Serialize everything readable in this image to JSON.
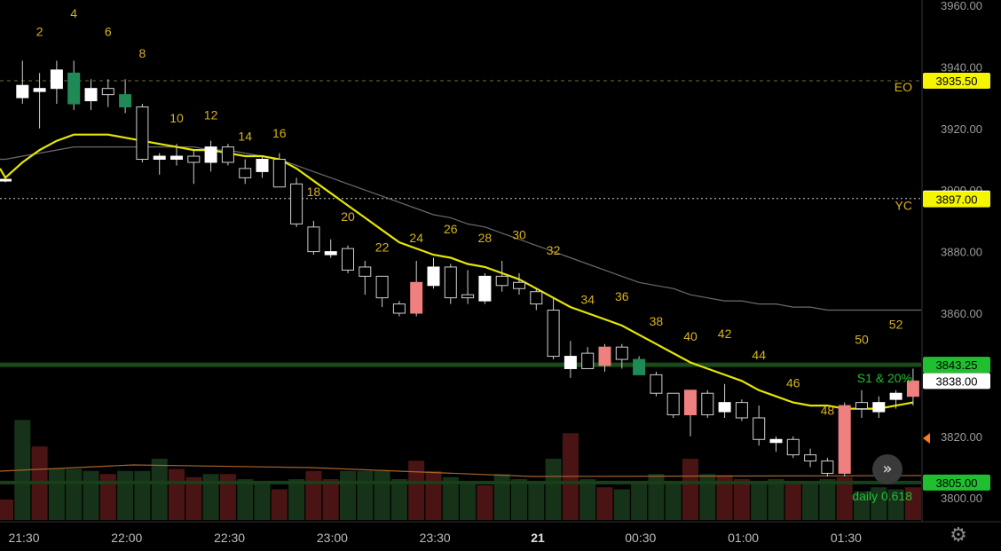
{
  "colors": {
    "background": "#000000",
    "bull_candle": "#ffffff",
    "bear_candle": "#000000",
    "bull_signal": "#1f8a55",
    "bear_signal": "#f07f7f",
    "ema": "#e6e600",
    "sma": "#6b6b6b",
    "bar_number": "#d8b21a",
    "green_tag": "#1fbf2f",
    "yellow_tag": "#f5f500",
    "white_tag": "#ffffff"
  },
  "icons": {
    "settings": "gear-icon",
    "scroll": "fast-forward-icon",
    "scale": "price-scale-arrow-icon"
  },
  "chart_data": {
    "type": "candlestick",
    "ylim": [
      3797,
      3960
    ],
    "y_ticks": [
      "3960.00",
      "3940.00",
      "3920.00",
      "3900.00",
      "3880.00",
      "3860.00",
      "3838.00",
      "3820.00",
      "3800.00"
    ],
    "x_ticks": [
      {
        "label": "21:30",
        "bar": 0
      },
      {
        "label": "22:00",
        "bar": 6
      },
      {
        "label": "22:30",
        "bar": 12
      },
      {
        "label": "23:00",
        "bar": 18
      },
      {
        "label": "23:30",
        "bar": 24
      },
      {
        "label": "21",
        "bar": 30,
        "bold": true
      },
      {
        "label": "00:30",
        "bar": 36
      },
      {
        "label": "01:00",
        "bar": 42
      },
      {
        "label": "01:30",
        "bar": 48
      }
    ],
    "candles": [
      {
        "o": 3903.0,
        "h": 3903.5,
        "l": 3902.5,
        "c": 3903.5,
        "color": "white"
      },
      {
        "o": 3930,
        "h": 3942,
        "l": 3928,
        "c": 3934,
        "color": "white"
      },
      {
        "o": 3932,
        "h": 3938,
        "l": 3920,
        "c": 3933,
        "color": "white"
      },
      {
        "o": 3933,
        "h": 3942,
        "l": 3928,
        "c": 3939,
        "color": "white"
      },
      {
        "o": 3938,
        "h": 3942,
        "l": 3926,
        "c": 3928,
        "color": "green"
      },
      {
        "o": 3933,
        "h": 3936,
        "l": 3926,
        "c": 3929,
        "color": "white"
      },
      {
        "o": 3933,
        "h": 3936,
        "l": 3927,
        "c": 3931,
        "color": "black"
      },
      {
        "o": 3931,
        "h": 3936,
        "l": 3925,
        "c": 3927,
        "color": "green"
      },
      {
        "o": 3927,
        "h": 3928,
        "l": 3909,
        "c": 3910,
        "color": "black"
      },
      {
        "o": 3910,
        "h": 3912,
        "l": 3905,
        "c": 3911,
        "color": "white"
      },
      {
        "o": 3911,
        "h": 3915,
        "l": 3908,
        "c": 3910,
        "color": "white"
      },
      {
        "o": 3909,
        "h": 3913,
        "l": 3902,
        "c": 3911,
        "color": "black"
      },
      {
        "o": 3909,
        "h": 3916,
        "l": 3906,
        "c": 3914,
        "color": "white"
      },
      {
        "o": 3914,
        "h": 3915,
        "l": 3908,
        "c": 3909,
        "color": "black"
      },
      {
        "o": 3907,
        "h": 3910,
        "l": 3902,
        "c": 3904,
        "color": "black"
      },
      {
        "o": 3906,
        "h": 3911,
        "l": 3904,
        "c": 3910,
        "color": "white"
      },
      {
        "o": 3910,
        "h": 3912,
        "l": 3902,
        "c": 3901,
        "color": "black"
      },
      {
        "o": 3902,
        "h": 3904,
        "l": 3888,
        "c": 3889,
        "color": "black"
      },
      {
        "o": 3888,
        "h": 3890,
        "l": 3879,
        "c": 3880,
        "color": "black"
      },
      {
        "o": 3879,
        "h": 3884,
        "l": 3878,
        "c": 3880,
        "color": "white"
      },
      {
        "o": 3881,
        "h": 3882,
        "l": 3873,
        "c": 3874,
        "color": "black"
      },
      {
        "o": 3875,
        "h": 3877,
        "l": 3866,
        "c": 3872,
        "color": "black"
      },
      {
        "o": 3872,
        "h": 3872,
        "l": 3862,
        "c": 3865,
        "color": "black"
      },
      {
        "o": 3863,
        "h": 3864,
        "l": 3859,
        "c": 3860,
        "color": "black"
      },
      {
        "o": 3860,
        "h": 3877,
        "l": 3859,
        "c": 3870,
        "color": "red"
      },
      {
        "o": 3869,
        "h": 3878,
        "l": 3868,
        "c": 3875,
        "color": "white"
      },
      {
        "o": 3875,
        "h": 3876,
        "l": 3863,
        "c": 3865,
        "color": "black"
      },
      {
        "o": 3865,
        "h": 3874,
        "l": 3863,
        "c": 3866,
        "color": "black"
      },
      {
        "o": 3864,
        "h": 3873,
        "l": 3863,
        "c": 3872,
        "color": "white"
      },
      {
        "o": 3872,
        "h": 3877,
        "l": 3867,
        "c": 3869,
        "color": "black"
      },
      {
        "o": 3870,
        "h": 3873,
        "l": 3866,
        "c": 3868,
        "color": "black"
      },
      {
        "o": 3867,
        "h": 3868,
        "l": 3861,
        "c": 3863,
        "color": "black"
      },
      {
        "o": 3861,
        "h": 3865,
        "l": 3845,
        "c": 3846,
        "color": "black"
      },
      {
        "o": 3846,
        "h": 3851,
        "l": 3839,
        "c": 3842,
        "color": "white"
      },
      {
        "o": 3847,
        "h": 3849,
        "l": 3842,
        "c": 3842,
        "color": "black"
      },
      {
        "o": 3843,
        "h": 3850,
        "l": 3841,
        "c": 3849,
        "color": "red"
      },
      {
        "o": 3845,
        "h": 3850,
        "l": 3842,
        "c": 3849,
        "color": "black"
      },
      {
        "o": 3845,
        "h": 3846,
        "l": 3840,
        "c": 3840,
        "color": "green"
      },
      {
        "o": 3840,
        "h": 3841,
        "l": 3833,
        "c": 3834,
        "color": "black"
      },
      {
        "o": 3834,
        "h": 3834,
        "l": 3826,
        "c": 3827,
        "color": "black"
      },
      {
        "o": 3827,
        "h": 3835,
        "l": 3820,
        "c": 3835,
        "color": "red"
      },
      {
        "o": 3827,
        "h": 3835,
        "l": 3826,
        "c": 3834,
        "color": "black"
      },
      {
        "o": 3828,
        "h": 3837,
        "l": 3826,
        "c": 3831,
        "color": "white"
      },
      {
        "o": 3831,
        "h": 3832,
        "l": 3825,
        "c": 3826,
        "color": "black"
      },
      {
        "o": 3826,
        "h": 3830,
        "l": 3817,
        "c": 3819,
        "color": "black"
      },
      {
        "o": 3818,
        "h": 3820,
        "l": 3815,
        "c": 3819,
        "color": "white"
      },
      {
        "o": 3819,
        "h": 3820,
        "l": 3813,
        "c": 3814,
        "color": "black"
      },
      {
        "o": 3814,
        "h": 3816,
        "l": 3810,
        "c": 3812,
        "color": "black"
      },
      {
        "o": 3812,
        "h": 3813,
        "l": 3807,
        "c": 3808,
        "color": "black"
      },
      {
        "o": 3808,
        "h": 3831,
        "l": 3807,
        "c": 3830,
        "color": "red"
      },
      {
        "o": 3829,
        "h": 3835,
        "l": 3826,
        "c": 3831,
        "color": "black"
      },
      {
        "o": 3828,
        "h": 3833,
        "l": 3826,
        "c": 3831,
        "color": "white"
      },
      {
        "o": 3832,
        "h": 3835,
        "l": 3829,
        "c": 3834,
        "color": "white"
      },
      {
        "o": 3833,
        "h": 3842,
        "l": 3830,
        "c": 3838,
        "color": "red"
      }
    ],
    "bar_numbers": [
      {
        "label": "2",
        "bar": 2,
        "price": 3950
      },
      {
        "label": "4",
        "bar": 4,
        "price": 3956
      },
      {
        "label": "6",
        "bar": 6,
        "price": 3950
      },
      {
        "label": "8",
        "bar": 8,
        "price": 3943
      },
      {
        "label": "10",
        "bar": 10,
        "price": 3922
      },
      {
        "label": "12",
        "bar": 12,
        "price": 3923
      },
      {
        "label": "14",
        "bar": 14,
        "price": 3916
      },
      {
        "label": "16",
        "bar": 16,
        "price": 3917
      },
      {
        "label": "18",
        "bar": 18,
        "price": 3898
      },
      {
        "label": "20",
        "bar": 20,
        "price": 3890
      },
      {
        "label": "22",
        "bar": 22,
        "price": 3880
      },
      {
        "label": "24",
        "bar": 24,
        "price": 3883
      },
      {
        "label": "26",
        "bar": 26,
        "price": 3886
      },
      {
        "label": "28",
        "bar": 28,
        "price": 3883
      },
      {
        "label": "30",
        "bar": 30,
        "price": 3884
      },
      {
        "label": "32",
        "bar": 32,
        "price": 3879
      },
      {
        "label": "34",
        "bar": 34,
        "price": 3863
      },
      {
        "label": "36",
        "bar": 36,
        "price": 3864
      },
      {
        "label": "38",
        "bar": 38,
        "price": 3856
      },
      {
        "label": "40",
        "bar": 40,
        "price": 3851
      },
      {
        "label": "42",
        "bar": 42,
        "price": 3852
      },
      {
        "label": "44",
        "bar": 44,
        "price": 3845
      },
      {
        "label": "46",
        "bar": 46,
        "price": 3836
      },
      {
        "label": "48",
        "bar": 48,
        "price": 3827
      },
      {
        "label": "50",
        "bar": 50,
        "price": 3850
      },
      {
        "label": "52",
        "bar": 52,
        "price": 3855
      }
    ],
    "ema": [
      3904,
      3909,
      3913,
      3916,
      3918,
      3918,
      3918,
      3917,
      3916,
      3915,
      3914,
      3913,
      3913,
      3912,
      3911,
      3911,
      3910,
      3907,
      3903,
      3899,
      3895,
      3891,
      3887,
      3883,
      3881,
      3879,
      3878,
      3876,
      3875,
      3873,
      3871,
      3868,
      3865,
      3862,
      3860,
      3858,
      3856,
      3853,
      3850,
      3847,
      3844,
      3842,
      3840,
      3838,
      3835,
      3833,
      3831,
      3830,
      3830,
      3829,
      3829,
      3829,
      3830,
      3831
    ],
    "sma": [
      3910,
      3911,
      3912,
      3913,
      3914,
      3914,
      3914,
      3914,
      3914,
      3914,
      3914,
      3914,
      3913,
      3913,
      3912,
      3911,
      3910,
      3908,
      3906,
      3904,
      3902,
      3900,
      3898,
      3896,
      3894,
      3892,
      3891,
      3889,
      3888,
      3886,
      3884,
      3882,
      3880,
      3878,
      3876,
      3874,
      3872,
      3870,
      3869,
      3868,
      3866,
      3865,
      3864,
      3864,
      3863,
      3863,
      3862,
      3862,
      3861,
      3861,
      3861,
      3861,
      3861,
      3861
    ],
    "volume": [
      {
        "v": 0.2,
        "color": "red"
      },
      {
        "v": 0.98,
        "color": "green"
      },
      {
        "v": 0.72,
        "color": "red"
      },
      {
        "v": 0.5,
        "color": "green"
      },
      {
        "v": 0.5,
        "color": "green"
      },
      {
        "v": 0.48,
        "color": "green"
      },
      {
        "v": 0.45,
        "color": "red"
      },
      {
        "v": 0.48,
        "color": "green"
      },
      {
        "v": 0.48,
        "color": "green"
      },
      {
        "v": 0.6,
        "color": "green"
      },
      {
        "v": 0.5,
        "color": "red"
      },
      {
        "v": 0.42,
        "color": "red"
      },
      {
        "v": 0.45,
        "color": "green"
      },
      {
        "v": 0.45,
        "color": "red"
      },
      {
        "v": 0.4,
        "color": "green"
      },
      {
        "v": 0.38,
        "color": "green"
      },
      {
        "v": 0.3,
        "color": "red"
      },
      {
        "v": 0.4,
        "color": "green"
      },
      {
        "v": 0.48,
        "color": "red"
      },
      {
        "v": 0.4,
        "color": "red"
      },
      {
        "v": 0.48,
        "color": "green"
      },
      {
        "v": 0.48,
        "color": "green"
      },
      {
        "v": 0.48,
        "color": "green"
      },
      {
        "v": 0.4,
        "color": "green"
      },
      {
        "v": 0.58,
        "color": "red"
      },
      {
        "v": 0.48,
        "color": "red"
      },
      {
        "v": 0.42,
        "color": "green"
      },
      {
        "v": 0.38,
        "color": "green"
      },
      {
        "v": 0.34,
        "color": "red"
      },
      {
        "v": 0.45,
        "color": "green"
      },
      {
        "v": 0.4,
        "color": "green"
      },
      {
        "v": 0.35,
        "color": "green"
      },
      {
        "v": 0.6,
        "color": "green"
      },
      {
        "v": 0.85,
        "color": "red"
      },
      {
        "v": 0.4,
        "color": "green"
      },
      {
        "v": 0.32,
        "color": "red"
      },
      {
        "v": 0.3,
        "color": "green"
      },
      {
        "v": 0.35,
        "color": "green"
      },
      {
        "v": 0.45,
        "color": "green"
      },
      {
        "v": 0.35,
        "color": "green"
      },
      {
        "v": 0.6,
        "color": "red"
      },
      {
        "v": 0.45,
        "color": "green"
      },
      {
        "v": 0.44,
        "color": "red"
      },
      {
        "v": 0.4,
        "color": "red"
      },
      {
        "v": 0.38,
        "color": "green"
      },
      {
        "v": 0.4,
        "color": "green"
      },
      {
        "v": 0.35,
        "color": "red"
      },
      {
        "v": 0.38,
        "color": "green"
      },
      {
        "v": 0.4,
        "color": "green"
      },
      {
        "v": 0.42,
        "color": "red"
      },
      {
        "v": 0.28,
        "color": "green"
      },
      {
        "v": 0.32,
        "color": "green"
      },
      {
        "v": 0.3,
        "color": "green"
      },
      {
        "v": 0.32,
        "color": "red"
      }
    ],
    "levels": [
      {
        "name": "EO",
        "price": 3935.5,
        "tag": "3935.50",
        "tag_color": "yellow",
        "line": "dashed",
        "label_color": "#d8b21a"
      },
      {
        "name": "YC",
        "price": 3897.25,
        "tag": "3897.25",
        "tag_color": "white",
        "line": "dotted",
        "label_color": "#d8b21a"
      },
      {
        "name": "YC2",
        "price": 3897.0,
        "tag": "3897.00",
        "tag_color": "yellow",
        "line": "none",
        "label_color": ""
      },
      {
        "name": "S1",
        "price": 3843.25,
        "tag": "3843.25",
        "tag_color": "green",
        "line": "solid",
        "label_color": "#1fbf2f"
      },
      {
        "name": "last",
        "price": 3838.0,
        "tag": "3838.00",
        "tag_color": "white",
        "line": "none",
        "label_color": ""
      },
      {
        "name": "daily",
        "price": 3805.0,
        "tag": "3805.00",
        "tag_color": "green",
        "line": "solid",
        "label_color": "#1fbf2f"
      }
    ],
    "annotations": [
      {
        "text": "EO",
        "price": 3935.5,
        "color": "#d8b21a"
      },
      {
        "text": "YC",
        "price": 3897.0,
        "color": "#d8b21a"
      },
      {
        "text": "S1 & 20%",
        "price": 3843.25,
        "color": "#1fbf2f"
      },
      {
        "text": "daily 0.618",
        "price": 3805.0,
        "color": "#1fbf2f"
      }
    ]
  }
}
